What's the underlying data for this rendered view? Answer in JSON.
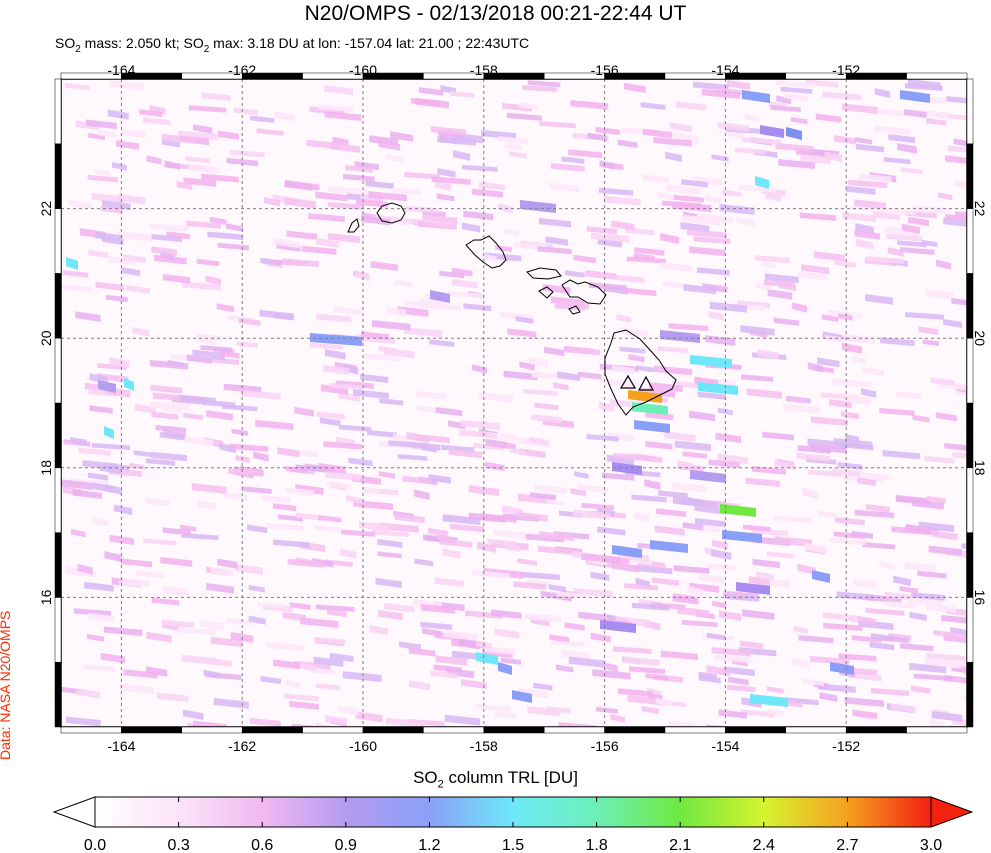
{
  "title": "N20/OMPS - 02/13/2018 00:21-22:44 UT",
  "subtitle": {
    "p1": "SO",
    "p2": " mass: 2.050 kt; SO",
    "p3": " max: 3.18 DU at lon: -157.04 lat: 21.00 ; 22:43UTC",
    "sub": "2"
  },
  "credit": "Data: NASA N20/OMPS",
  "colorbar": {
    "label_main": "SO",
    "label_sub": "2",
    "label_rest": " column TRL [DU]",
    "ticks": [
      "0.0",
      "0.3",
      "0.6",
      "0.9",
      "1.2",
      "1.5",
      "1.8",
      "2.1",
      "2.4",
      "2.7",
      "3.0"
    ]
  },
  "map": {
    "lon_ticks": [
      "-164",
      "-162",
      "-160",
      "-158",
      "-156",
      "-154",
      "-152"
    ],
    "lat_ticks": [
      "22",
      "20",
      "18",
      "16"
    ],
    "lon_range": [
      -165,
      -150
    ],
    "lat_range": [
      14,
      24
    ],
    "grid": true,
    "volcano_markers": 2,
    "colors": {
      "frame": "#000000",
      "grid": "#808080"
    }
  }
}
